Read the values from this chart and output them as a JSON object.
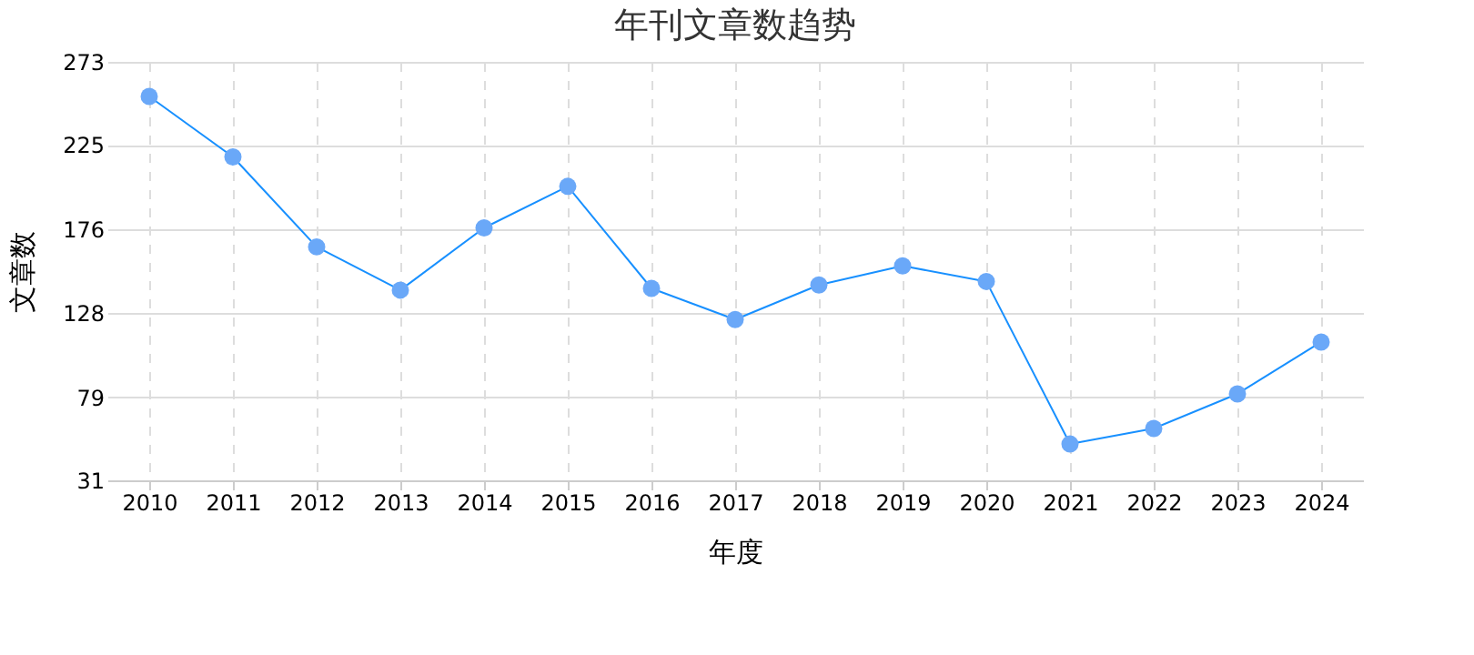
{
  "chart_data": {
    "type": "line",
    "title": "年刊文章数趋势",
    "xlabel": "年度",
    "ylabel": "文章数",
    "categories": [
      "2010",
      "2011",
      "2012",
      "2013",
      "2014",
      "2015",
      "2016",
      "2017",
      "2018",
      "2019",
      "2020",
      "2021",
      "2022",
      "2023",
      "2024"
    ],
    "series": [
      {
        "color": "#1890ff",
        "values": [
          253,
          218,
          166,
          141,
          177,
          201,
          142,
          124,
          144,
          155,
          146,
          52,
          61,
          81,
          111
        ]
      }
    ],
    "ylim": [
      31,
      273
    ],
    "yticks": [
      31,
      79,
      128,
      176,
      225,
      273
    ],
    "grid": true,
    "marker": "circle",
    "line_style": "solid"
  }
}
